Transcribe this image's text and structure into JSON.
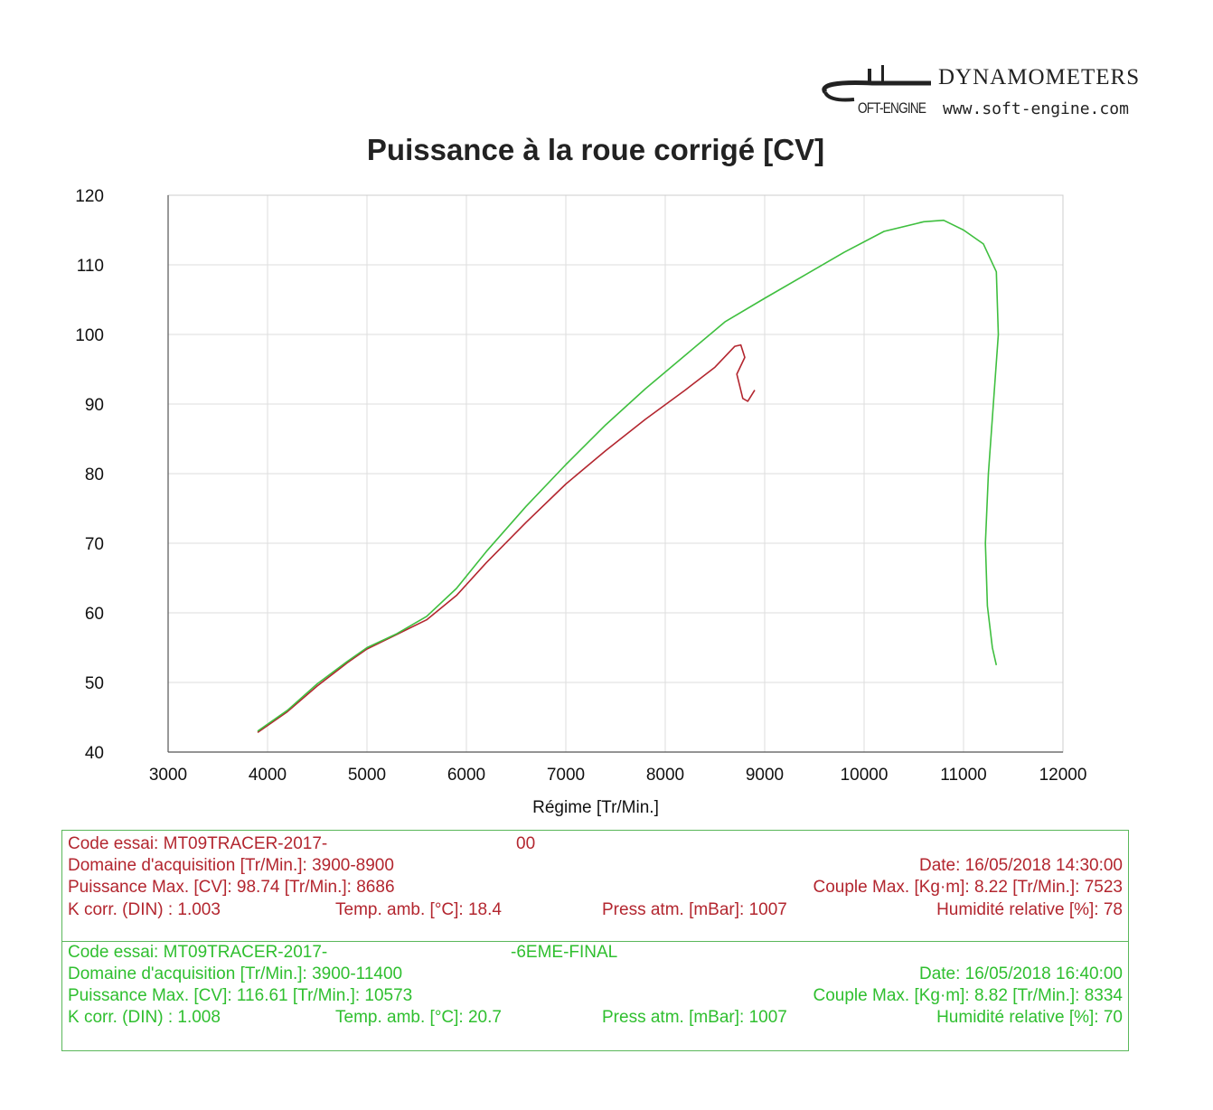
{
  "logo": {
    "brand": "DYNAMOMETERS",
    "url": "www.soft-engine.com",
    "mark": "OFT-ENGINE"
  },
  "chart_data": {
    "type": "line",
    "title": "Puissance à la roue corrigé [CV]",
    "xlabel": "Régime [Tr/Min.]",
    "ylabel": "",
    "xlim": [
      3000,
      12000
    ],
    "ylim": [
      40,
      120
    ],
    "xticks": [
      3000,
      4000,
      5000,
      6000,
      7000,
      8000,
      9000,
      10000,
      11000,
      12000
    ],
    "yticks": [
      40,
      50,
      60,
      70,
      80,
      90,
      100,
      110,
      120
    ],
    "grid": true,
    "legend": "none",
    "series": [
      {
        "color": "#b3262f",
        "points": [
          [
            3900,
            42.8
          ],
          [
            4200,
            45.8
          ],
          [
            4500,
            49.5
          ],
          [
            4800,
            52.8
          ],
          [
            5000,
            54.8
          ],
          [
            5300,
            56.9
          ],
          [
            5600,
            59.0
          ],
          [
            5900,
            62.5
          ],
          [
            6200,
            67.2
          ],
          [
            6600,
            73.0
          ],
          [
            7000,
            78.5
          ],
          [
            7400,
            83.3
          ],
          [
            7800,
            87.8
          ],
          [
            8200,
            92.0
          ],
          [
            8500,
            95.3
          ],
          [
            8700,
            98.3
          ],
          [
            8760,
            98.5
          ],
          [
            8800,
            96.7
          ],
          [
            8720,
            94.3
          ],
          [
            8780,
            90.8
          ],
          [
            8830,
            90.4
          ],
          [
            8900,
            92.0
          ]
        ]
      },
      {
        "color": "#3fbf3f",
        "points": [
          [
            3900,
            43.0
          ],
          [
            4200,
            46.0
          ],
          [
            4500,
            49.8
          ],
          [
            4800,
            53.0
          ],
          [
            5000,
            55.0
          ],
          [
            5300,
            57.0
          ],
          [
            5600,
            59.5
          ],
          [
            5900,
            63.5
          ],
          [
            6200,
            68.8
          ],
          [
            6600,
            75.3
          ],
          [
            7000,
            81.3
          ],
          [
            7400,
            87.0
          ],
          [
            7800,
            92.2
          ],
          [
            8200,
            97.0
          ],
          [
            8600,
            101.8
          ],
          [
            9000,
            105.2
          ],
          [
            9400,
            108.5
          ],
          [
            9800,
            111.8
          ],
          [
            10200,
            114.8
          ],
          [
            10600,
            116.2
          ],
          [
            10800,
            116.4
          ],
          [
            11000,
            115.0
          ],
          [
            11200,
            113.0
          ],
          [
            11330,
            109.0
          ],
          [
            11350,
            100.0
          ],
          [
            11300,
            90.0
          ],
          [
            11250,
            80.0
          ],
          [
            11220,
            70.0
          ],
          [
            11240,
            61.0
          ],
          [
            11290,
            55.0
          ],
          [
            11330,
            52.5
          ]
        ]
      }
    ]
  },
  "runs": [
    {
      "color": "#b3262f",
      "code": "Code essai: MT09TRACER-2017-",
      "code_suffix": "00",
      "domaine": "Domaine d'acquisition [Tr/Min.]: 3900-8900",
      "date": "Date: 16/05/2018   14:30:00",
      "puissance": "Puissance Max. [CV]: 98.74   [Tr/Min.]: 8686",
      "couple": "Couple Max. [Kg·m]: 8.22   [Tr/Min.]: 7523",
      "kcorr": "K corr. (DIN) : 1.003",
      "temp": "Temp. amb. [°C]: 18.4",
      "press": "Press atm. [mBar]: 1007",
      "humid": "Humidité relative [%]: 78"
    },
    {
      "color": "#2fbf2f",
      "code": "Code essai: MT09TRACER-2017-",
      "code_suffix": "-6EME-FINAL",
      "domaine": "Domaine d'acquisition [Tr/Min.]: 3900-11400",
      "date": "Date: 16/05/2018   16:40:00",
      "puissance": "Puissance Max. [CV]: 116.61   [Tr/Min.]: 10573",
      "couple": "Couple Max. [Kg·m]: 8.82   [Tr/Min.]: 8334",
      "kcorr": "K corr. (DIN) : 1.008",
      "temp": "Temp. amb. [°C]: 20.7",
      "press": "Press atm. [mBar]: 1007",
      "humid": "Humidité relative [%]: 70"
    }
  ]
}
